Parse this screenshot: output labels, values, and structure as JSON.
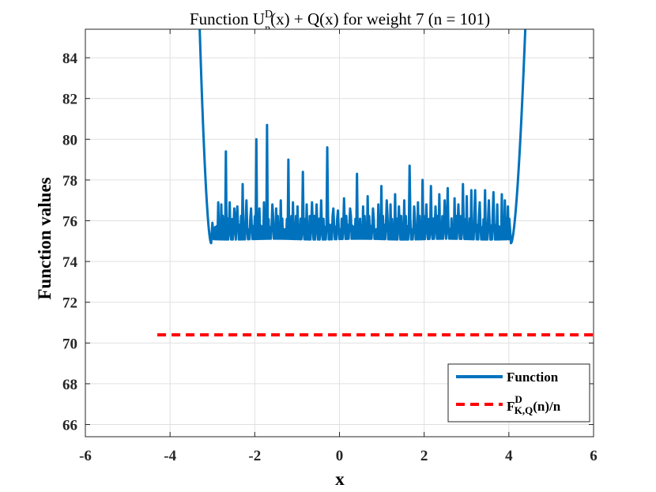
{
  "chart_data": {
    "type": "line",
    "title": {
      "prefix": "Function U",
      "sup": "D",
      "sub": "n",
      "suffix": "(x) + Q(x) for weight 7  (n = 101)"
    },
    "xlabel": "x",
    "ylabel": "Function values",
    "xlim": [
      -6,
      6
    ],
    "ylim": [
      65.4,
      85.4
    ],
    "xticks": [
      -6,
      -4,
      -2,
      0,
      2,
      4,
      6
    ],
    "xtick_labels": [
      "-6",
      "-4",
      "-2",
      "0",
      "2",
      "4",
      "6"
    ],
    "yticks": [
      66,
      68,
      70,
      72,
      74,
      76,
      78,
      80,
      82,
      84
    ],
    "ytick_labels": [
      "66",
      "68",
      "70",
      "72",
      "74",
      "76",
      "78",
      "80",
      "82",
      "84"
    ],
    "grid": true,
    "legend_position": "bottom-right",
    "series": [
      {
        "name": "Function",
        "color": "#0072BD",
        "style": "solid",
        "baseline": 75.1,
        "minima": [
          {
            "x": -3.03,
            "y": 74.9
          },
          {
            "x": 4.05,
            "y": 74.9
          }
        ],
        "left_wall_x": [
          -3.35,
          -3.03
        ],
        "right_wall_x": [
          4.05,
          4.45
        ],
        "spikes": [
          [
            -2.88,
            76.9
          ],
          [
            -2.8,
            76.8
          ],
          [
            -2.7,
            79.4
          ],
          [
            -2.6,
            76.9
          ],
          [
            -2.5,
            76.6
          ],
          [
            -2.42,
            76.7
          ],
          [
            -2.3,
            77.8
          ],
          [
            -2.2,
            77.0
          ],
          [
            -2.1,
            76.6
          ],
          [
            -1.98,
            80.0
          ],
          [
            -1.9,
            76.6
          ],
          [
            -1.8,
            76.9
          ],
          [
            -1.72,
            80.7
          ],
          [
            -1.6,
            76.8
          ],
          [
            -1.5,
            76.6
          ],
          [
            -1.4,
            77.0
          ],
          [
            -1.22,
            79.0
          ],
          [
            -1.1,
            76.9
          ],
          [
            -1.0,
            76.7
          ],
          [
            -0.88,
            78.4
          ],
          [
            -0.78,
            76.8
          ],
          [
            -0.65,
            76.9
          ],
          [
            -0.55,
            76.8
          ],
          [
            -0.45,
            77.0
          ],
          [
            -0.3,
            79.6
          ],
          [
            -0.15,
            76.6
          ],
          [
            -0.05,
            76.5
          ],
          [
            0.1,
            77.1
          ],
          [
            0.25,
            76.6
          ],
          [
            0.4,
            78.3
          ],
          [
            0.55,
            76.7
          ],
          [
            0.65,
            77.2
          ],
          [
            0.78,
            76.6
          ],
          [
            0.9,
            76.8
          ],
          [
            0.98,
            77.7
          ],
          [
            1.1,
            77.0
          ],
          [
            1.2,
            76.8
          ],
          [
            1.3,
            77.3
          ],
          [
            1.4,
            76.7
          ],
          [
            1.52,
            77.0
          ],
          [
            1.65,
            78.7
          ],
          [
            1.75,
            76.7
          ],
          [
            1.85,
            76.9
          ],
          [
            1.95,
            78.0
          ],
          [
            2.05,
            76.8
          ],
          [
            2.15,
            77.7
          ],
          [
            2.25,
            76.7
          ],
          [
            2.35,
            77.3
          ],
          [
            2.48,
            77.0
          ],
          [
            2.55,
            77.6
          ],
          [
            2.7,
            77.1
          ],
          [
            2.8,
            76.8
          ],
          [
            2.9,
            77.8
          ],
          [
            3.0,
            77.2
          ],
          [
            3.1,
            77.5
          ],
          [
            3.2,
            77.5
          ],
          [
            3.3,
            76.9
          ],
          [
            3.42,
            77.5
          ],
          [
            3.52,
            77.0
          ],
          [
            3.62,
            77.4
          ],
          [
            3.72,
            76.8
          ],
          [
            3.82,
            77.3
          ],
          [
            3.9,
            77.0
          ],
          [
            3.97,
            76.7
          ]
        ]
      },
      {
        "name": "F^D_{K,Q}(n)/n",
        "color": "#FF0000",
        "style": "dashed",
        "value": 70.4,
        "x_start": -4.3,
        "x_end": 6
      }
    ]
  },
  "legend": {
    "function_label": "Function",
    "bound_main": "F",
    "bound_sup": "D",
    "bound_sub": "K,Q",
    "bound_suffix": "(n)/n"
  }
}
